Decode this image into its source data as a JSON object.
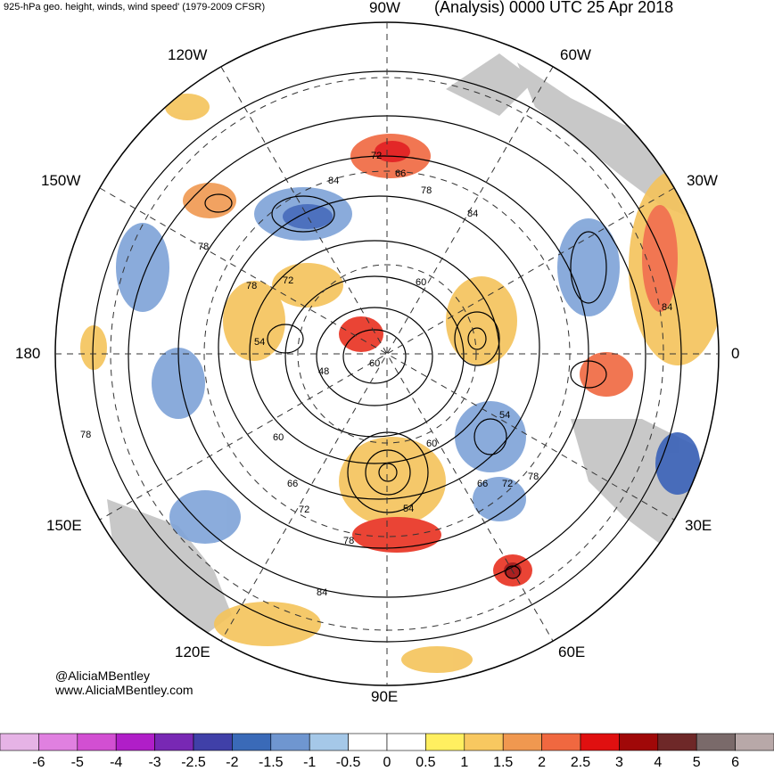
{
  "header": {
    "left_title": "925-hPa geo. height, winds, wind speed' (1979-2009 CFSR)",
    "right_title": "(Analysis) 0000 UTC 25 Apr 2018"
  },
  "longitude_labels": {
    "top": "90W",
    "top_left": "120W",
    "top_right": "60W",
    "upper_left": "150W",
    "upper_right": "30W",
    "left": "180",
    "right": "0",
    "lower_left": "150E",
    "lower_right": "30E",
    "bottom_left": "120E",
    "bottom_right": "60E",
    "bottom": "90E"
  },
  "contour_labels": [
    "72",
    "66",
    "78",
    "84",
    "84",
    "78",
    "72",
    "78",
    "60",
    "54",
    "48",
    "60",
    "84",
    "54",
    "60",
    "60",
    "66",
    "72",
    "78",
    "66",
    "72",
    "54",
    "78",
    "84",
    "78"
  ],
  "credits": {
    "handle": "@AliciaMBentley",
    "site": "www.AliciaMBentley.com"
  },
  "colorbar": {
    "ticks": [
      "-6",
      "-5",
      "-4",
      "-3",
      "-2.5",
      "-2",
      "-1.5",
      "-1",
      "-0.5",
      "0",
      "0.5",
      "1",
      "1.5",
      "2",
      "2.5",
      "3",
      "4",
      "5",
      "6"
    ],
    "colors": [
      "#e6b3e6",
      "#e080e0",
      "#d24fd2",
      "#b01ec8",
      "#7828b4",
      "#4040a8",
      "#3a6ab8",
      "#6f96d0",
      "#a5c8e8",
      "#ffffff",
      "#ffffff",
      "#ffef60",
      "#f8c860",
      "#f09850",
      "#f06840",
      "#e01010",
      "#a00808",
      "#6e2828",
      "#7a6a6a",
      "#b8a8a8"
    ]
  },
  "map_colors": {
    "land": "#c8c8c8",
    "positive": "#f4c35a",
    "strong_positive": "#e83020",
    "negative": "#7ea3d8",
    "strong_negative": "#3a62b8"
  }
}
